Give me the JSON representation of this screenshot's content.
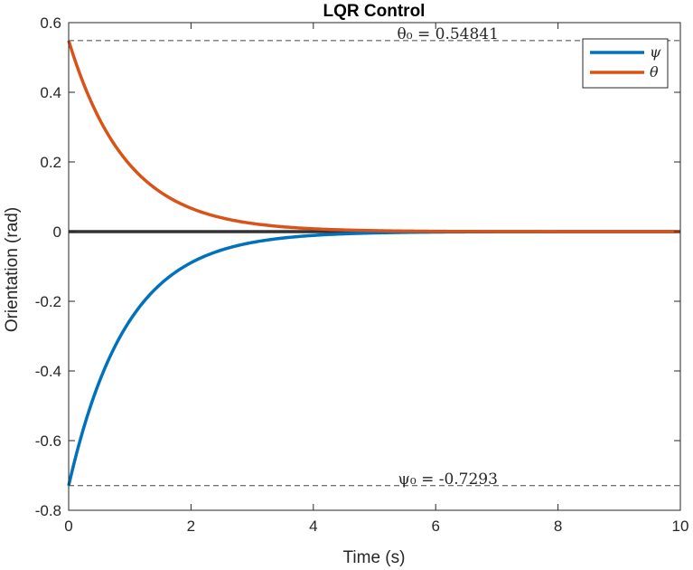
{
  "chart_data": {
    "type": "line",
    "title": "LQR Control",
    "xlabel": "Time (s)",
    "ylabel": "Orientation (rad)",
    "xlim": [
      0,
      10
    ],
    "ylim": [
      -0.8,
      0.6
    ],
    "xticks": [
      "0",
      "2",
      "4",
      "6",
      "8",
      "10"
    ],
    "yticks": [
      "-0.8",
      "-0.6",
      "-0.4",
      "-0.2",
      "0",
      "0.2",
      "0.4",
      "0.6"
    ],
    "grid": false,
    "legend_position": "top-right",
    "series": [
      {
        "name": "ψ",
        "color": "#0072BD",
        "initial": -0.7293,
        "decay_rate": 1.05
      },
      {
        "name": "θ",
        "color": "#D95319",
        "initial": 0.54841,
        "decay_rate": 1.05
      }
    ],
    "reference_lines": [
      {
        "y": 0.54841,
        "label": "θ₀ = 0.54841"
      },
      {
        "y": -0.7293,
        "label": "ψ₀ = -0.7293"
      }
    ],
    "zero_line_color": "#333333"
  }
}
